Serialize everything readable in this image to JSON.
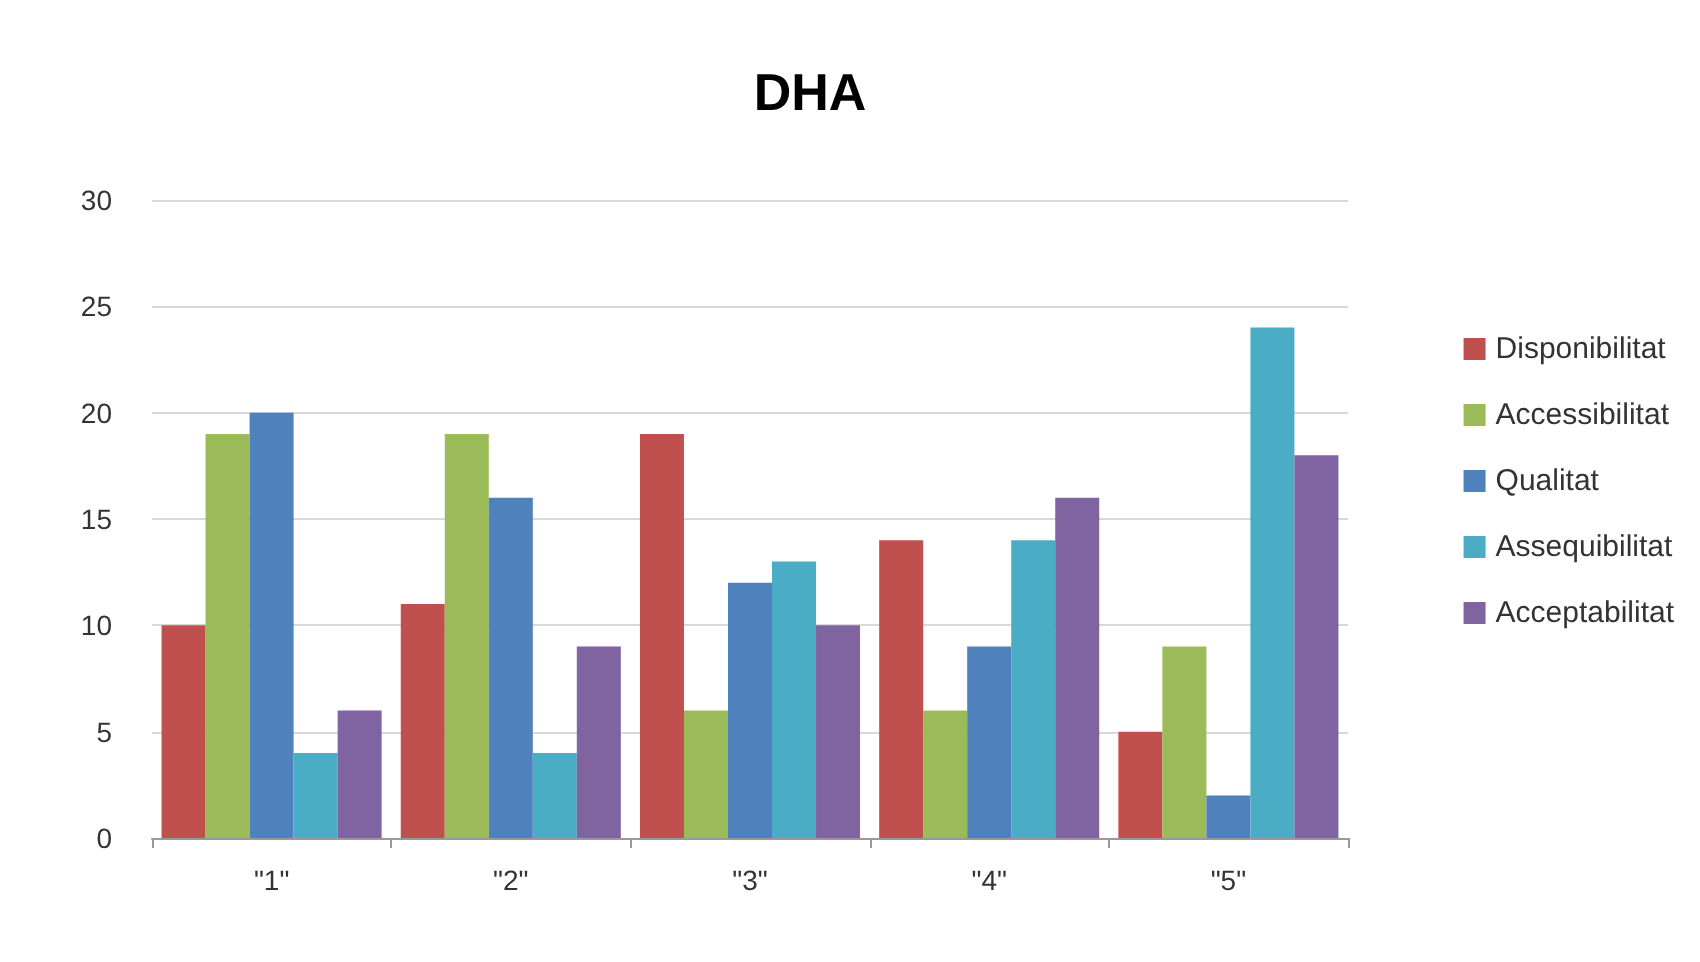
{
  "chart_data": {
    "type": "bar",
    "title": "DHA",
    "categories": [
      "\"1\"",
      "\"2\"",
      "\"3\"",
      "\"4\"",
      "\"5\""
    ],
    "series": [
      {
        "name": "Disponibilitat",
        "color": "#c0504d",
        "values": [
          10,
          11,
          19,
          14,
          5
        ]
      },
      {
        "name": "Accessibilitat",
        "color": "#9bbb59",
        "values": [
          19,
          19,
          6,
          6,
          9
        ]
      },
      {
        "name": "Qualitat",
        "color": "#4f81bd",
        "values": [
          20,
          16,
          12,
          9,
          2
        ]
      },
      {
        "name": "Assequibilitat",
        "color": "#4bacc6",
        "values": [
          4,
          4,
          13,
          14,
          24
        ]
      },
      {
        "name": "Acceptabilitat",
        "color": "#8064a2",
        "values": [
          6,
          9,
          10,
          16,
          18
        ]
      }
    ],
    "ylim": [
      0,
      30
    ],
    "yticks": [
      0,
      5,
      10,
      15,
      20,
      25,
      30
    ],
    "grid": "y",
    "legend": "right"
  }
}
